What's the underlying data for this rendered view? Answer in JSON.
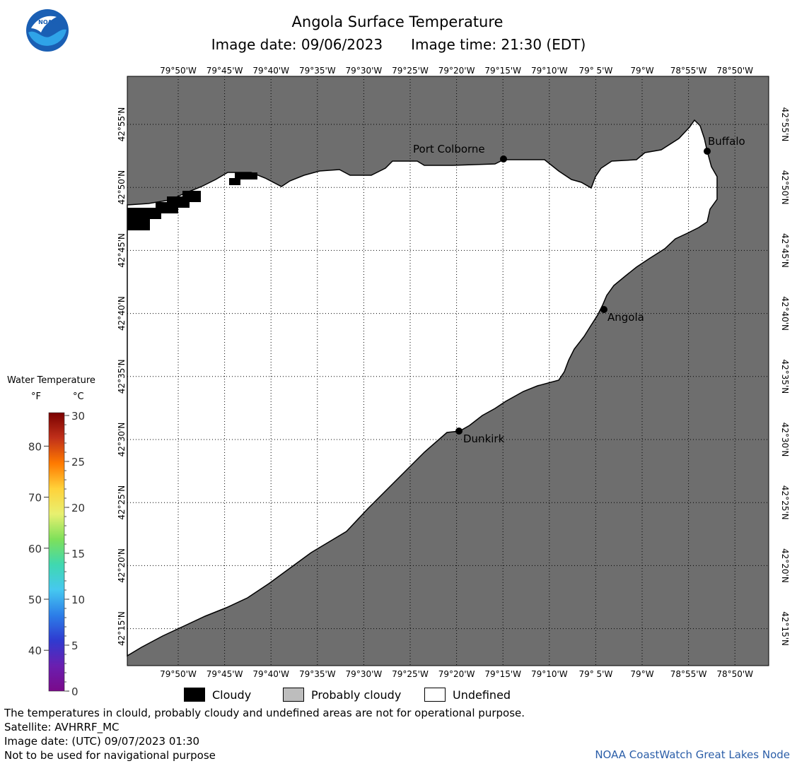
{
  "header": {
    "title": "Angola Surface Temperature",
    "image_date": "Image date: 09/06/2023",
    "image_time": "Image time: 21:30 (EDT)"
  },
  "logo": {
    "text": "NOAA",
    "icon": "noaa-logo-icon"
  },
  "map": {
    "longitude_labels": [
      "79°50'W",
      "79°45'W",
      "79°40'W",
      "79°35'W",
      "79°30'W",
      "79°25'W",
      "79°20'W",
      "79°15'W",
      "79°10'W",
      "79° 5'W",
      "79°W",
      "78°55'W",
      "78°50'W"
    ],
    "latitude_labels": [
      "42°55'N",
      "42°50'N",
      "42°45'N",
      "42°40'N",
      "42°35'N",
      "42°30'N",
      "42°25'N",
      "42°20'N",
      "42°15'N"
    ],
    "places": [
      {
        "name": "Port Colborne"
      },
      {
        "name": "Buffalo"
      },
      {
        "name": "Angola"
      },
      {
        "name": "Dunkirk"
      }
    ],
    "colors": {
      "land": "#6e6e6e",
      "water_undefined": "#ffffff",
      "cloudy": "#000000",
      "coast": "#000000"
    }
  },
  "legend": {
    "title": "Water Temperature",
    "unit_f": "°F",
    "unit_c": "°C",
    "fahrenheit_ticks": [
      "80",
      "70",
      "60",
      "50",
      "40"
    ],
    "celsius_ticks": [
      "30",
      "25",
      "20",
      "15",
      "10",
      "5",
      "0"
    ],
    "color_stops": [
      "#7a0000",
      "#c0301a",
      "#ff7a00",
      "#ffd23a",
      "#e8f070",
      "#7ee05a",
      "#3fd8b0",
      "#46c8f0",
      "#2c7ee8",
      "#2f3ad0",
      "#6a1fb0",
      "#7a0a8a"
    ]
  },
  "keys": [
    {
      "label": "Cloudy",
      "color": "#000000"
    },
    {
      "label": "Probably cloudy",
      "color": "#bdbdbd"
    },
    {
      "label": "Undefined",
      "color": "#ffffff"
    }
  ],
  "footer": {
    "note": "The temperatures in clould, probably cloudy and undefined areas are not for operational purpose.",
    "satellite": "Satellite: AVHRRF_MC",
    "utc_date": "Image date: (UTC) 09/07/2023  01:30",
    "nav_warning": "Not to be used for navigational purpose",
    "credit": "NOAA CoastWatch Great Lakes Node"
  }
}
